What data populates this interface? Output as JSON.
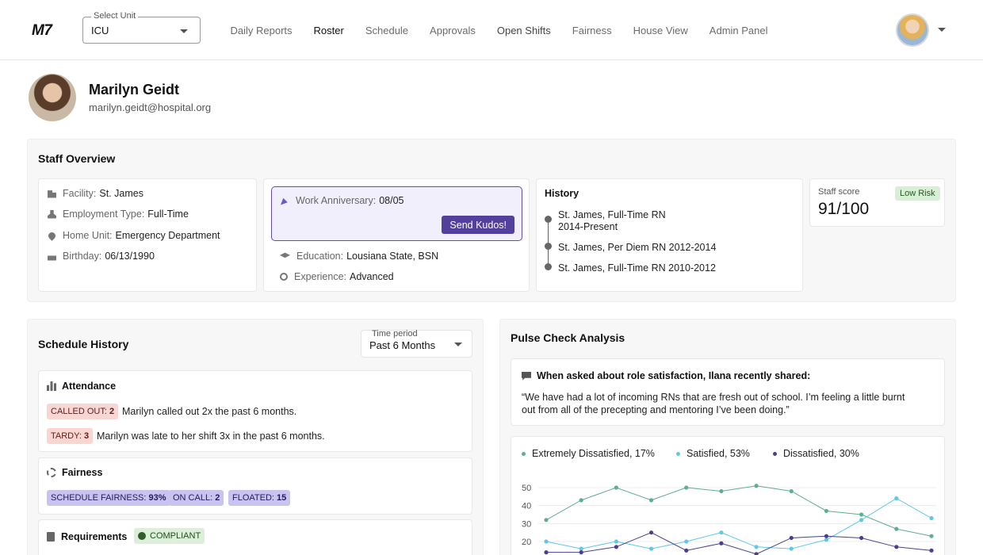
{
  "header": {
    "logo": "M7",
    "unit_select": {
      "label": "Select Unit",
      "value": "ICU"
    },
    "nav": [
      {
        "label": "Daily Reports",
        "state": "normal"
      },
      {
        "label": "Roster",
        "state": "active"
      },
      {
        "label": "Schedule",
        "state": "normal"
      },
      {
        "label": "Approvals",
        "state": "normal"
      },
      {
        "label": "Open Shifts",
        "state": "semi"
      },
      {
        "label": "Fairness",
        "state": "normal"
      },
      {
        "label": "House View",
        "state": "normal"
      },
      {
        "label": "Admin Panel",
        "state": "normal"
      }
    ]
  },
  "profile": {
    "name": "Marilyn Geidt",
    "email": "marilyn.geidt@hospital.org"
  },
  "staff_overview": {
    "title": "Staff Overview",
    "details": [
      {
        "icon": "building-icon",
        "label": "Facility:",
        "value": "St. James"
      },
      {
        "icon": "person-icon",
        "label": "Employment Type:",
        "value": "Full-Time"
      },
      {
        "icon": "location-pin-icon",
        "label": "Home Unit:",
        "value": "Emergency Department"
      },
      {
        "icon": "cake-icon",
        "label": "Birthday:",
        "value": "06/13/1990"
      }
    ],
    "anniversary": {
      "label": "Work Anniversary:",
      "value": "08/05",
      "button": "Send Kudos!"
    },
    "education": {
      "label": "Education:",
      "value": "Lousiana State, BSN"
    },
    "experience": {
      "label": "Experience:",
      "value": "Advanced"
    },
    "history": {
      "title": "History",
      "items": [
        "St. James, Full-Time RN",
        "2014-Present",
        "St. James, Per Diem RN 2012-2014",
        "St. James, Full-Time RN 2010-2012"
      ]
    },
    "score": {
      "label": "Staff score",
      "value": "91/100",
      "badge": "Low Risk"
    }
  },
  "schedule_history": {
    "title": "Schedule History",
    "time_period": {
      "label": "Time period",
      "value": "Past 6 Months"
    },
    "attendance": {
      "title": "Attendance",
      "rows": [
        {
          "tag_label": "CALLED OUT:",
          "tag_value": "2",
          "text": "Marilyn called out 2x the past 6 months."
        },
        {
          "tag_label": "TARDY:",
          "tag_value": "3",
          "text": "Marilyn was late to her shift 3x in the past 6 months."
        }
      ]
    },
    "fairness": {
      "title": "Fairness",
      "tags": [
        {
          "label": "SCHEDULE FAIRNESS:",
          "value": "93%"
        },
        {
          "label": "ON CALL:",
          "value": "2"
        },
        {
          "label": "FLOATED:",
          "value": "15"
        }
      ]
    },
    "requirements": {
      "title": "Requirements",
      "badge": "COMPLIANT"
    }
  },
  "pulse_check": {
    "title": "Pulse Check Analysis",
    "quote_title": "When asked about role satisfaction, Ilana recently shared:",
    "quote_line1": "“We have had a lot of incoming RNs that are fresh out of school.  I’m feeling a little burnt",
    "quote_line2": "out from all of the precepting and mentoring I’ve been doing.”"
  },
  "chart_data": {
    "type": "line",
    "ylim": [
      10,
      55
    ],
    "yticks": [
      50,
      40,
      30,
      20
    ],
    "grid": true,
    "legend_position": "top-left",
    "x": [
      1,
      2,
      3,
      4,
      5,
      6,
      7,
      8,
      9,
      10,
      11,
      12
    ],
    "series": [
      {
        "name": "Extremely Dissatisfied, 17%",
        "color": "#5fae8e",
        "values": [
          32,
          43,
          50,
          43,
          50,
          48,
          51,
          48,
          37,
          35,
          27,
          23
        ]
      },
      {
        "name": "Satisfied, 53%",
        "color": "#5fc8e6",
        "values": [
          20,
          16,
          20,
          16,
          20,
          25,
          17,
          16,
          21,
          32,
          44,
          33
        ]
      },
      {
        "name": "Dissatisfied, 30%",
        "color": "#4a3f8c",
        "values": [
          14,
          14,
          17,
          25,
          15,
          19,
          13,
          22,
          23,
          22,
          17,
          15
        ]
      }
    ]
  }
}
